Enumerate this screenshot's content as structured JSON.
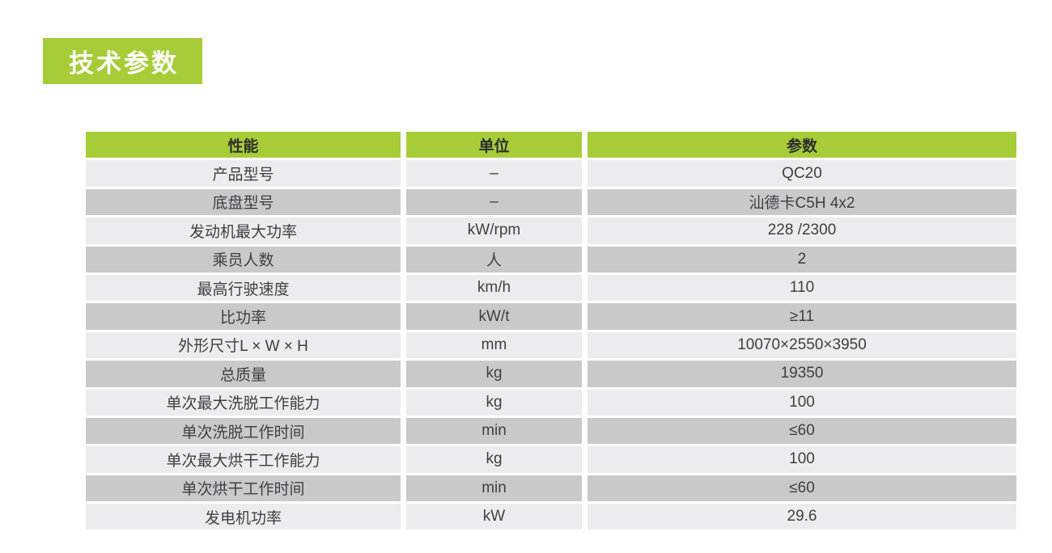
{
  "colors": {
    "accent": "#a6cd38",
    "row_light": "#ececee",
    "row_dark": "#c9c9ca",
    "text": "#3f3f41",
    "title_text": "#ffffff"
  },
  "title": {
    "text": "技术参数"
  },
  "table": {
    "headers": [
      "性能",
      "单位",
      "参数"
    ],
    "rows": [
      {
        "name": "产品型号",
        "unit": "–",
        "value": "QC20"
      },
      {
        "name": "底盘型号",
        "unit": "–",
        "value": "汕德卡C5H 4x2"
      },
      {
        "name": "发动机最大功率",
        "unit": "kW/rpm",
        "value": "228 /2300"
      },
      {
        "name": "乘员人数",
        "unit": "人",
        "value": "2"
      },
      {
        "name": "最高行驶速度",
        "unit": "km/h",
        "value": "110"
      },
      {
        "name": "比功率",
        "unit": "kW/t",
        "value": "≥11"
      },
      {
        "name": "外形尺寸L × W × H",
        "unit": "mm",
        "value": "10070×2550×3950"
      },
      {
        "name": "总质量",
        "unit": "kg",
        "value": "19350"
      },
      {
        "name": "单次最大洗脱工作能力",
        "unit": "kg",
        "value": "100"
      },
      {
        "name": "单次洗脱工作时间",
        "unit": "min",
        "value": "≤60"
      },
      {
        "name": "单次最大烘干工作能力",
        "unit": "kg",
        "value": "100"
      },
      {
        "name": "单次烘干工作时间",
        "unit": "min",
        "value": "≤60"
      },
      {
        "name": "发电机功率",
        "unit": "kW",
        "value": "29.6"
      }
    ]
  }
}
